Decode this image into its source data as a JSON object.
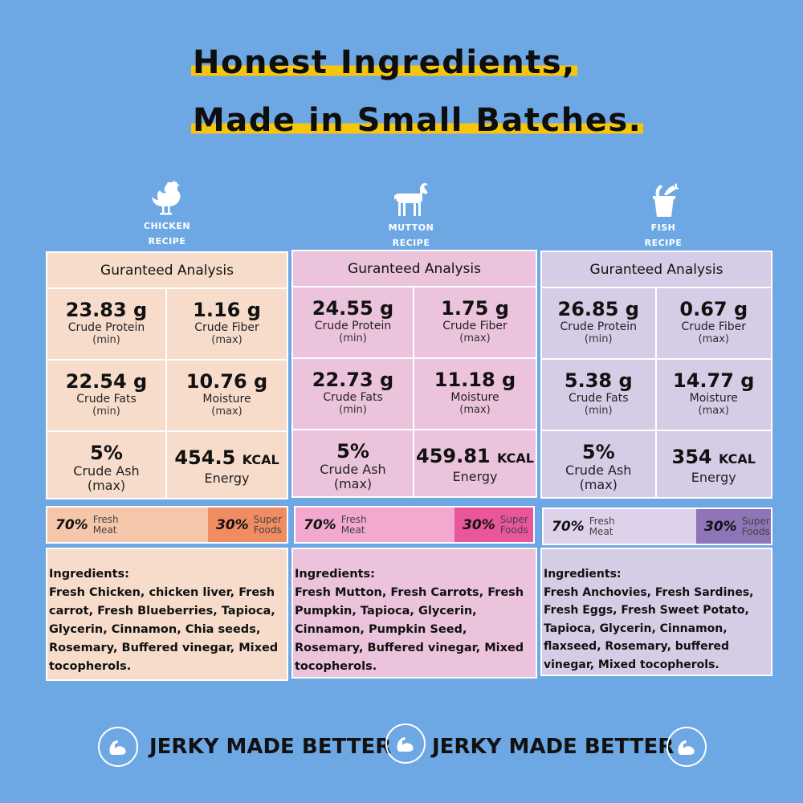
{
  "headline": {
    "line1": "Honest Ingredients,",
    "line2": "Made in Small Batches."
  },
  "recipes": [
    {
      "icon": "chicken-icon",
      "name_line1": "CHICKEN",
      "name_line2": "RECIPE",
      "analysis_title": "Guranteed Analysis",
      "protein": {
        "value": "23.83 g",
        "label": "Crude Protein",
        "qual": "(min)"
      },
      "fiber": {
        "value": "1.16 g",
        "label": "Crude Fiber",
        "qual": "(max)"
      },
      "fats": {
        "value": "22.54 g",
        "label": "Crude Fats",
        "qual": "(min)"
      },
      "moisture": {
        "value": "10.76 g",
        "label": "Moisture",
        "qual": "(max)"
      },
      "ash": {
        "value": "5%",
        "label": "Crude Ash",
        "qual": "(max)"
      },
      "energy": {
        "value": "454.5",
        "unit": "KCAL",
        "label": "Energy"
      },
      "meat_pct": "70%",
      "meat_label1": "Fresh",
      "meat_label2": "Meat",
      "super_pct": "30%",
      "super_label1": "Super",
      "super_label2": "Foods",
      "ingredients_title": "Ingredients:",
      "ingredients": "Fresh Chicken, chicken liver, Fresh carrot, Fresh Blueberries, Tapioca, Glycerin, Cinnamon, Chia seeds, Rosemary, Buffered vinegar, Mixed tocopherols.",
      "colors": {
        "panel": "#f7dccb",
        "bar": "#f5c6aa",
        "accent": "#f08c62"
      }
    },
    {
      "icon": "goat-icon",
      "name_line1": "MUTTON",
      "name_line2": "RECIPE",
      "analysis_title": "Guranteed Analysis",
      "protein": {
        "value": "24.55 g",
        "label": "Crude Protein",
        "qual": "(min)"
      },
      "fiber": {
        "value": "1.75 g",
        "label": "Crude Fiber",
        "qual": "(max)"
      },
      "fats": {
        "value": "22.73 g",
        "label": "Crude Fats",
        "qual": "(min)"
      },
      "moisture": {
        "value": "11.18 g",
        "label": "Moisture",
        "qual": "(max)"
      },
      "ash": {
        "value": "5%",
        "label": "Crude Ash",
        "qual": "(max)"
      },
      "energy": {
        "value": "459.81",
        "unit": "KCAL",
        "label": "Energy"
      },
      "meat_pct": "70%",
      "meat_label1": "Fresh",
      "meat_label2": "Meat",
      "super_pct": "30%",
      "super_label1": "Super",
      "super_label2": "Foods",
      "ingredients_title": "Ingredients:",
      "ingredients": "Fresh Mutton, Fresh Carrots, Fresh Pumpkin, Tapioca, Glycerin, Cinnamon, Pumpkin Seed, Rosemary, Buffered vinegar, Mixed tocopherols.",
      "colors": {
        "panel": "#ecc3dc",
        "bar": "#f2a8cf",
        "accent": "#e9579a"
      }
    },
    {
      "icon": "fish-bucket-icon",
      "name_line1": "FISH",
      "name_line2": "RECIPE",
      "analysis_title": "Guranteed Analysis",
      "protein": {
        "value": "26.85 g",
        "label": "Crude Protein",
        "qual": "(min)"
      },
      "fiber": {
        "value": "0.67 g",
        "label": "Crude Fiber",
        "qual": "(max)"
      },
      "fats": {
        "value": "5.38 g",
        "label": "Crude Fats",
        "qual": "(min)"
      },
      "moisture": {
        "value": "14.77 g",
        "label": "Moisture",
        "qual": "(max)"
      },
      "ash": {
        "value": "5%",
        "label": "Crude Ash",
        "qual": "(max)"
      },
      "energy": {
        "value": "354",
        "unit": "KCAL",
        "label": "Energy"
      },
      "meat_pct": "70%",
      "meat_label1": "Fresh",
      "meat_label2": "Meat",
      "super_pct": "30%",
      "super_label1": "Super",
      "super_label2": "Foods",
      "ingredients_title": "Ingredients:",
      "ingredients": "Fresh Anchovies, Fresh Sardines, Fresh Eggs, Fresh Sweet Potato, Tapioca, Glycerin, Cinnamon, flaxseed, Rosemary, buffered vinegar, Mixed tocopherols.",
      "colors": {
        "panel": "#d6cce6",
        "bar": "#ddd2ea",
        "accent": "#8f75b8"
      }
    }
  ],
  "footer": {
    "slogan1": "JERKY MADE BETTER",
    "slogan2": "JERKY MADE BETTER",
    "badge_icon": "flexed-arm-icon"
  }
}
